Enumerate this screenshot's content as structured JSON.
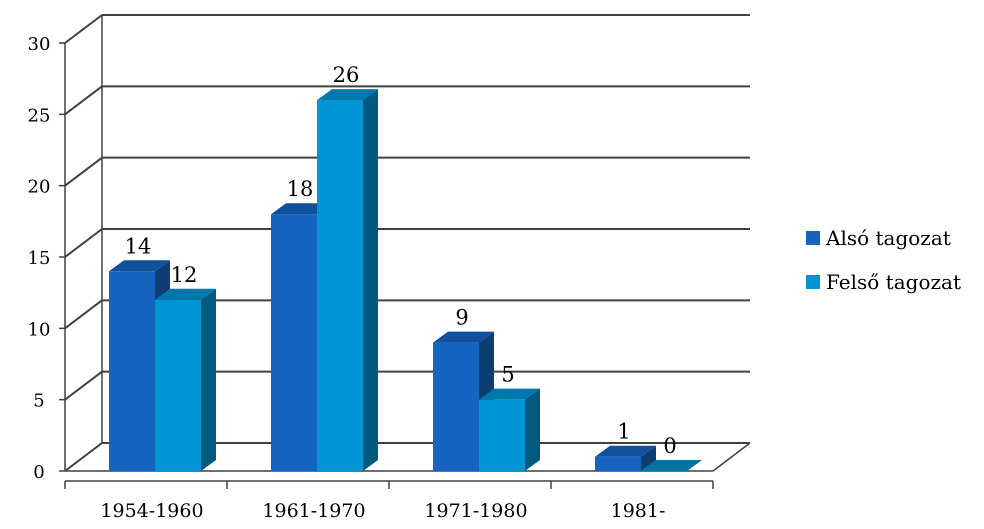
{
  "chart_data": {
    "type": "bar",
    "title": "",
    "xlabel": "",
    "ylabel": "",
    "ylim": [
      0,
      30
    ],
    "yticks": [
      "0",
      "5",
      "10",
      "15",
      "20",
      "25",
      "30"
    ],
    "categories": [
      "1954-1960",
      "1961-1970",
      "1971-1980",
      "1981-"
    ],
    "series": [
      {
        "name": "Alsó tagozat",
        "values": [
          14,
          18,
          9,
          1
        ],
        "labels": [
          "14",
          "18",
          "9",
          "1"
        ],
        "color": "#1565C0"
      },
      {
        "name": "Felső tagozat",
        "values": [
          12,
          26,
          5,
          0
        ],
        "labels": [
          "12",
          "26",
          "5",
          "0"
        ],
        "color": "#0096D6"
      }
    ],
    "grid": true,
    "legend": "right",
    "style": "3d-column"
  }
}
